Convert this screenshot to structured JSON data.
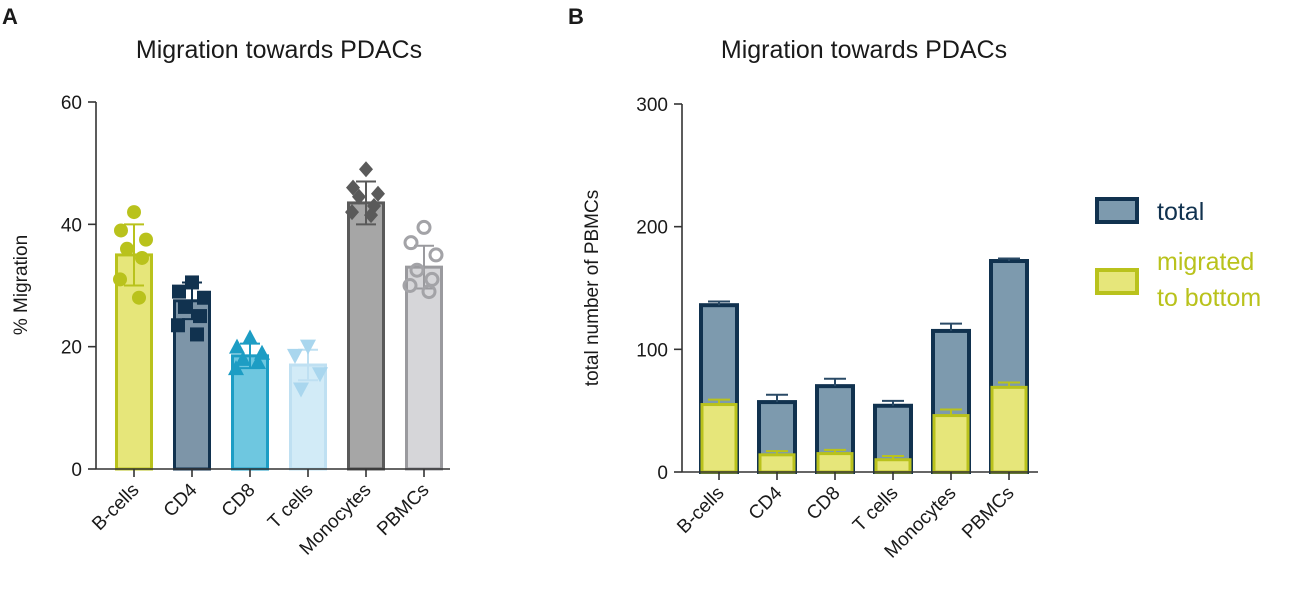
{
  "chart_data": [
    {
      "panel": "A",
      "type": "bar",
      "title": "Migration towards PDACs",
      "xlabel": "",
      "ylabel": "% Migration",
      "ylim": [
        0,
        60
      ],
      "yticks": [
        0,
        20,
        40,
        60
      ],
      "categories": [
        "B-cells",
        "CD4",
        "CD8",
        "T cells",
        "Monocytes",
        "PBMCs"
      ],
      "values": [
        35,
        27.5,
        18.5,
        17,
        43.5,
        33
      ],
      "errors": [
        5,
        3,
        2,
        2.5,
        3.5,
        3.5
      ],
      "colors": {
        "fills": [
          "#e6e67a",
          "#7d95a8",
          "#6ec7e0",
          "#d2ebf7",
          "#a6a6a6",
          "#d6d6d9"
        ],
        "strokes": [
          "#b9c21c",
          "#11324f",
          "#1d9dc4",
          "#bfe0f2",
          "#5a5a5a",
          "#9a9a9e"
        ],
        "points": [
          "#b9c21c",
          "#11324f",
          "#1d9dc4",
          "#a9d6ee",
          "#5a5a5a",
          "#a3a3a7"
        ]
      },
      "markers": [
        "circle",
        "square",
        "triangle-up",
        "triangle-down",
        "diamond",
        "circle-open"
      ],
      "points": [
        [
          42,
          39,
          37.5,
          36,
          34.5,
          31,
          28
        ],
        [
          30.5,
          29,
          28,
          26.5,
          25,
          23.5,
          22
        ],
        [
          21.5,
          20,
          19,
          18,
          17.5,
          16.5
        ],
        [
          20,
          18.5,
          15.5,
          13
        ],
        [
          49,
          46,
          45,
          44.5,
          43,
          42,
          41.5
        ],
        [
          39.5,
          37,
          35,
          32.5,
          31,
          30,
          29
        ]
      ]
    },
    {
      "panel": "B",
      "type": "bar",
      "stacked": true,
      "title": "Migration towards PDACs",
      "xlabel": "",
      "ylabel": "total number of PBMCs",
      "ylim": [
        0,
        300
      ],
      "yticks": [
        0,
        100,
        200,
        300
      ],
      "categories": [
        "B-cells",
        "CD4",
        "CD8",
        "T cells",
        "Monocytes",
        "PBMCs"
      ],
      "series": [
        {
          "name": "total",
          "values": [
            136,
            57,
            70,
            54,
            115,
            172
          ],
          "errors": [
            3,
            6,
            6,
            4,
            6,
            2
          ],
          "fill": "#7d9aae",
          "stroke": "#11324f"
        },
        {
          "name": "migrated\nto bottom",
          "values": [
            55,
            14,
            15,
            10,
            46,
            69
          ],
          "errors": [
            4,
            3,
            3,
            3,
            5,
            4
          ],
          "fill": "#e6e67a",
          "stroke": "#b9c21c"
        }
      ],
      "legend": [
        {
          "label": "total"
        },
        {
          "label_lines": [
            "migrated",
            "to bottom"
          ]
        }
      ],
      "legend_position": "right"
    }
  ],
  "panel_labels": [
    "A",
    "B"
  ]
}
